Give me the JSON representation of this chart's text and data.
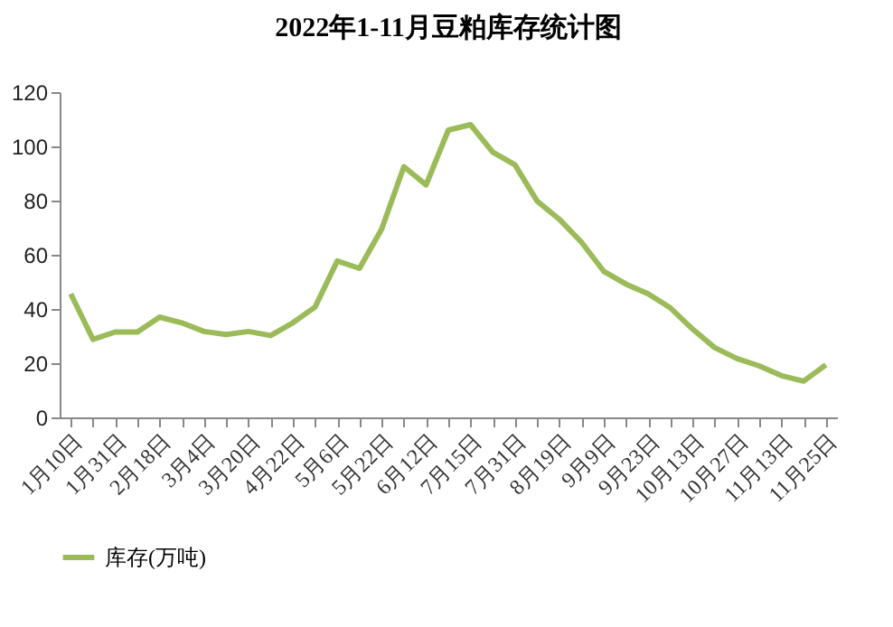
{
  "chart_data": {
    "type": "line",
    "title": "2022年1-11月豆粕库存统计图",
    "categories": [
      "1月10日",
      null,
      "1月31日",
      null,
      "2月18日",
      null,
      "3月4日",
      null,
      "3月20日",
      null,
      "4月22日",
      null,
      "5月6日",
      null,
      "5月22日",
      null,
      "6月12日",
      null,
      "7月15日",
      null,
      "7月31日",
      null,
      "8月19日",
      null,
      "9月9日",
      null,
      "9月23日",
      null,
      "10月13日",
      null,
      "10月27日",
      null,
      "11月13日",
      null,
      "11月25日"
    ],
    "series": [
      {
        "name": "库存(万吨)",
        "color": "#9bbb59",
        "values": [
          45.6,
          28.8,
          31.5,
          31.5,
          37,
          34.9,
          31.7,
          30.6,
          31.7,
          30.2,
          34.9,
          40.7,
          57.7,
          55,
          69.5,
          92.5,
          85.8,
          106,
          108,
          97.9,
          93.2,
          79.8,
          73.1,
          64.6,
          53.9,
          49.2,
          45.6,
          40.4,
          32.6,
          25.7,
          21.7,
          19,
          15.4,
          13.4,
          19.4
        ]
      }
    ],
    "ylim": [
      0,
      120
    ],
    "yticks": [
      0,
      20,
      40,
      60,
      80,
      100,
      120
    ],
    "grid": false,
    "legend": "bottom",
    "marker": "none",
    "line_style": "solid"
  }
}
